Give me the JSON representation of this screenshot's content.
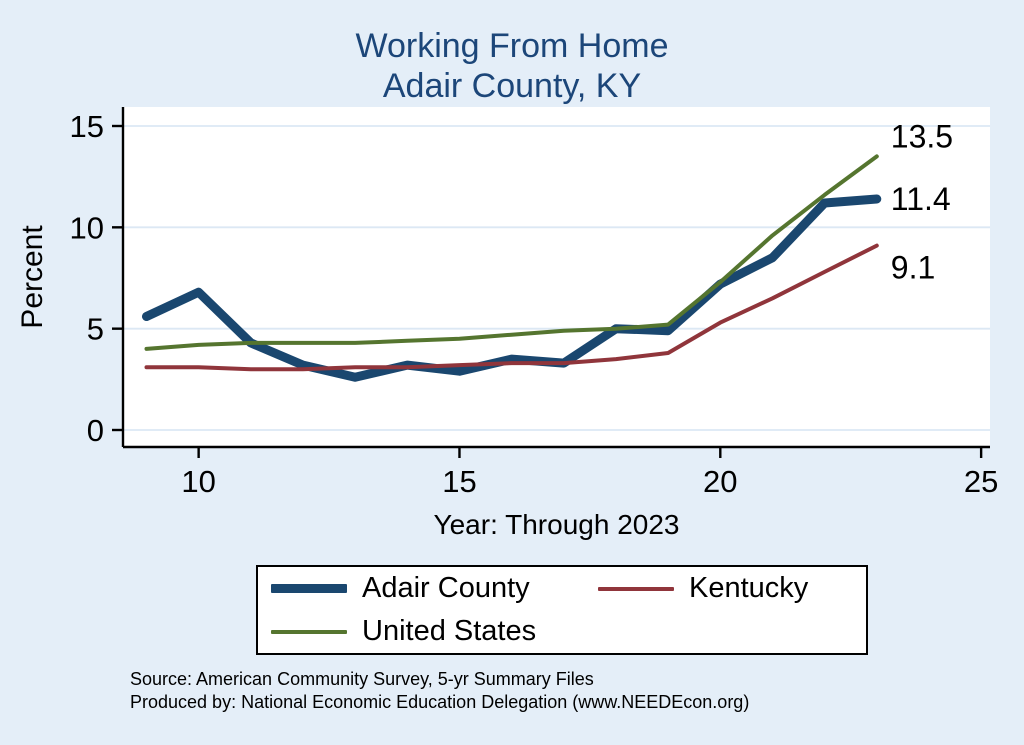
{
  "title": {
    "line1": "Working From Home",
    "line2": "Adair County, KY"
  },
  "chart_data": {
    "type": "line",
    "title": "Working From Home - Adair County, KY",
    "x": [
      9,
      10,
      11,
      12,
      13,
      14,
      15,
      16,
      17,
      18,
      19,
      20,
      21,
      22,
      23
    ],
    "series": [
      {
        "name": "Adair County",
        "color": "#1a476f",
        "line_width": 9,
        "values": [
          5.6,
          6.8,
          4.3,
          3.2,
          2.6,
          3.2,
          2.9,
          3.5,
          3.3,
          5.0,
          4.9,
          7.2,
          8.5,
          11.2,
          11.4
        ],
        "end_label": "11.4",
        "label_dy": 0
      },
      {
        "name": "Kentucky",
        "color": "#90353b",
        "line_width": 4,
        "values": [
          3.1,
          3.1,
          3.0,
          3.0,
          3.1,
          3.1,
          3.2,
          3.3,
          3.3,
          3.5,
          3.8,
          5.3,
          6.5,
          7.8,
          9.1
        ],
        "end_label": "9.1",
        "label_dy": 22
      },
      {
        "name": "United States",
        "color": "#55752f",
        "line_width": 4,
        "values": [
          4.0,
          4.2,
          4.3,
          4.3,
          4.3,
          4.4,
          4.5,
          4.7,
          4.9,
          5.0,
          5.2,
          7.3,
          9.6,
          11.6,
          13.5
        ],
        "end_label": "13.5",
        "label_dy": -20
      }
    ],
    "xlabel": "Year: Through 2023",
    "ylabel": "Percent",
    "xticks": [
      10,
      15,
      20,
      25
    ],
    "yticks": [
      0,
      5,
      10,
      15
    ],
    "xlim": [
      8.55,
      25.17
    ],
    "ylim": [
      0,
      15
    ],
    "grid": true,
    "grid_color": "#dce8f4",
    "legend_position": "bottom"
  },
  "footer": {
    "line1": "Source: American Community Survey, 5-yr Summary Files",
    "line2": "Produced by: National Economic Education Delegation (www.NEEDEcon.org)"
  },
  "colors": {
    "background": "#e4eef8",
    "plot_background": "#ffffff",
    "title": "#1c4679",
    "axis": "#000000",
    "text": "#000000"
  }
}
